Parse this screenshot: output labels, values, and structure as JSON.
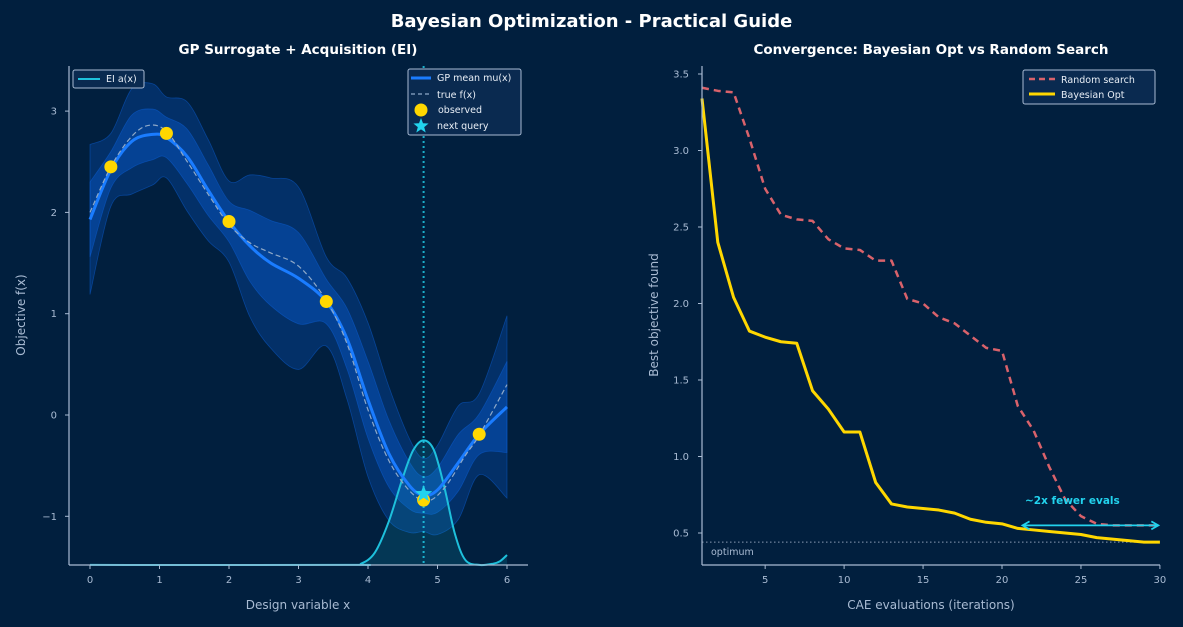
{
  "suptitle": "Bayesian Optimization - Practical Guide",
  "colors": {
    "background": "#011f3e",
    "gp_mean": "#1a7cff",
    "band": "#0b5fd8",
    "true_f": "#8fa9c8",
    "observed": "#ffd700",
    "next_query": "#22d3ee",
    "ei": "#1ec0dc",
    "random": "#d9626b",
    "bayes": "#ffd700",
    "axis": "#a9bbd3",
    "annotation": "#22d3ee"
  },
  "chart_data": [
    {
      "type": "line",
      "title": "GP Surrogate + Acquisition (EI)",
      "xlabel": "Design variable x",
      "ylabel": "Objective f(x)",
      "xlim": [
        -0.3,
        6.3
      ],
      "ylim": [
        -1.48,
        3.45
      ],
      "xticks": [
        "0",
        "1",
        "2",
        "3",
        "4",
        "5",
        "6"
      ],
      "yticks": [
        "−1",
        "0",
        "1",
        "2",
        "3"
      ],
      "grid": false,
      "legends": [
        {
          "placement": "upper-left",
          "entries": [
            "EI a(x)"
          ]
        },
        {
          "placement": "upper-right",
          "entries": [
            "GP mean mu(x)",
            "true f(x)",
            "observed",
            "next query"
          ]
        }
      ],
      "gp_mean": {
        "name": "GP mean mu(x)",
        "x": [
          0,
          0.3,
          0.6,
          0.9,
          1.1,
          1.4,
          1.7,
          2.0,
          2.3,
          2.6,
          3.0,
          3.4,
          3.7,
          4.0,
          4.3,
          4.6,
          4.8,
          5.0,
          5.3,
          5.6,
          6.0
        ],
        "y": [
          1.93,
          2.42,
          2.7,
          2.77,
          2.74,
          2.55,
          2.22,
          1.91,
          1.67,
          1.5,
          1.35,
          1.12,
          0.75,
          0.15,
          -0.38,
          -0.7,
          -0.79,
          -0.74,
          -0.47,
          -0.19,
          0.08
        ]
      },
      "gp_std": {
        "x": [
          0,
          0.3,
          0.6,
          0.9,
          1.1,
          1.4,
          1.7,
          2.0,
          2.3,
          2.6,
          3.0,
          3.4,
          3.7,
          4.0,
          4.3,
          4.6,
          4.8,
          5.0,
          5.3,
          5.6,
          6.0
        ],
        "y": [
          0.37,
          0.18,
          0.26,
          0.25,
          0.2,
          0.27,
          0.25,
          0.2,
          0.35,
          0.42,
          0.45,
          0.22,
          0.3,
          0.38,
          0.33,
          0.23,
          0.18,
          0.22,
          0.28,
          0.2,
          0.45
        ]
      },
      "true_f": {
        "name": "true f(x)",
        "x": [
          0,
          0.3,
          0.6,
          0.85,
          1.1,
          1.4,
          1.7,
          2.0,
          2.3,
          2.6,
          3.0,
          3.4,
          3.7,
          4.0,
          4.3,
          4.6,
          4.85,
          5.1,
          5.4,
          5.6,
          6.0
        ],
        "y": [
          2.0,
          2.45,
          2.75,
          2.86,
          2.8,
          2.5,
          2.18,
          1.88,
          1.7,
          1.6,
          1.47,
          1.13,
          0.7,
          0.05,
          -0.45,
          -0.75,
          -0.85,
          -0.72,
          -0.4,
          -0.2,
          0.3
        ]
      },
      "observed": {
        "name": "observed",
        "x": [
          0.3,
          1.1,
          2.0,
          3.4,
          4.8,
          5.6
        ],
        "y": [
          2.45,
          2.78,
          1.91,
          1.12,
          -0.84,
          -0.19
        ]
      },
      "next_query": {
        "name": "next query",
        "x": 4.8,
        "y": -0.78
      },
      "ei": {
        "name": "EI a(x)",
        "x": [
          0,
          3.7,
          3.9,
          4.1,
          4.3,
          4.5,
          4.65,
          4.8,
          4.95,
          5.1,
          5.25,
          5.4,
          5.6,
          5.8,
          5.9,
          6.0
        ],
        "y": [
          0,
          0,
          0.01,
          0.1,
          0.35,
          0.7,
          0.92,
          1.0,
          0.92,
          0.62,
          0.25,
          0.04,
          0,
          0.01,
          0.03,
          0.08
        ]
      }
    },
    {
      "type": "line",
      "title": "Convergence: Bayesian Opt vs Random Search",
      "xlabel": "CAE evaluations (iterations)",
      "ylabel": "Best objective found",
      "xlim": [
        1,
        30
      ],
      "ylim": [
        0.29,
        3.55
      ],
      "xticks": [
        "5",
        "10",
        "15",
        "20",
        "25",
        "30"
      ],
      "yticks": [
        "0.5",
        "1.0",
        "1.5",
        "2.0",
        "2.5",
        "3.0",
        "3.5"
      ],
      "grid": false,
      "legend": "upper-right",
      "x": [
        1,
        2,
        3,
        4,
        5,
        6,
        7,
        8,
        9,
        10,
        11,
        12,
        13,
        14,
        15,
        16,
        17,
        18,
        19,
        20,
        21,
        22,
        23,
        24,
        25,
        26,
        27,
        28,
        29,
        30
      ],
      "series": [
        {
          "name": "Random search",
          "style": "dashed",
          "values": [
            3.41,
            3.39,
            3.38,
            3.08,
            2.75,
            2.58,
            2.55,
            2.54,
            2.42,
            2.36,
            2.35,
            2.28,
            2.28,
            2.03,
            2.0,
            1.91,
            1.87,
            1.79,
            1.71,
            1.69,
            1.33,
            1.17,
            0.93,
            0.72,
            0.61,
            0.56,
            0.55,
            0.55,
            0.55,
            0.55
          ]
        },
        {
          "name": "Bayesian Opt",
          "style": "solid",
          "values": [
            3.34,
            2.4,
            2.04,
            1.82,
            1.78,
            1.75,
            1.74,
            1.43,
            1.31,
            1.16,
            1.16,
            0.83,
            0.69,
            0.67,
            0.66,
            0.65,
            0.63,
            0.59,
            0.57,
            0.56,
            0.53,
            0.52,
            0.51,
            0.5,
            0.49,
            0.47,
            0.46,
            0.45,
            0.44,
            0.44
          ]
        }
      ],
      "optimum": {
        "value": 0.44,
        "label": "optimum"
      },
      "annotation": {
        "text": "~2x fewer evals",
        "x_from": 21.3,
        "x_to": 29.9,
        "y": 0.55
      }
    }
  ]
}
